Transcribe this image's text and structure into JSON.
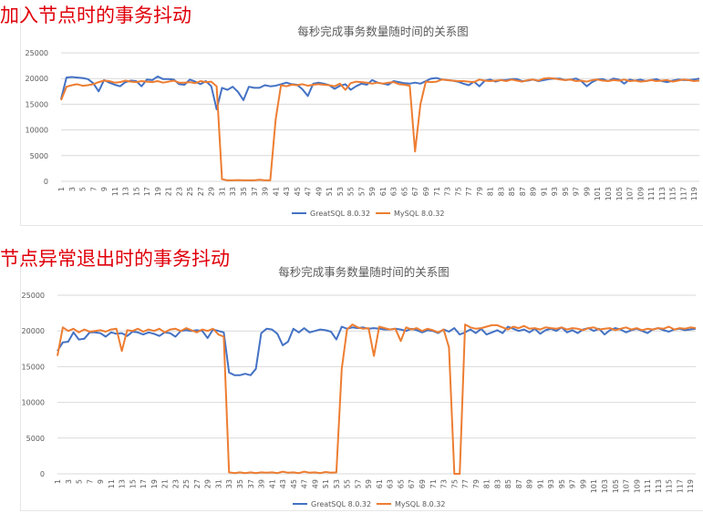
{
  "headings": [
    "加入节点时的事务抖动",
    "节点异常退出时的事务抖动"
  ],
  "colors": {
    "heading": "#e0000a",
    "greatsql": "#4472c4",
    "mysql": "#ed7d31",
    "grid": "#d9d9d9"
  },
  "chart_data": [
    {
      "type": "line",
      "title": "每秒完成事务数量随时间的关系图",
      "xlabel": "",
      "ylabel": "",
      "x_range": [
        1,
        120
      ],
      "x_tick_labels": [
        "1",
        "3",
        "5",
        "7",
        "9",
        "11",
        "13",
        "15",
        "17",
        "19",
        "21",
        "23",
        "25",
        "27",
        "29",
        "31",
        "33",
        "35",
        "37",
        "39",
        "41",
        "43",
        "45",
        "47",
        "49",
        "51",
        "53",
        "55",
        "57",
        "59",
        "61",
        "63",
        "65",
        "67",
        "69",
        "71",
        "73",
        "75",
        "77",
        "79",
        "81",
        "83",
        "85",
        "87",
        "89",
        "91",
        "93",
        "95",
        "97",
        "99",
        "101",
        "103",
        "105",
        "107",
        "109",
        "111",
        "113",
        "115",
        "117",
        "119"
      ],
      "y_tick_labels": [
        "0",
        "5000",
        "10000",
        "15000",
        "20000",
        "25000"
      ],
      "ylim": [
        0,
        25000
      ],
      "grid": true,
      "legend_position": "bottom",
      "series": [
        {
          "name": "GreatSQL 8.0.32",
          "color": "#4472c4",
          "values": [
            16000,
            20200,
            20300,
            20200,
            20100,
            19900,
            19100,
            17500,
            19700,
            19200,
            18800,
            18500,
            19300,
            19600,
            19500,
            18500,
            19800,
            19700,
            20400,
            19900,
            19900,
            19800,
            18900,
            18800,
            19800,
            19400,
            18900,
            19500,
            18500,
            14000,
            18200,
            17800,
            18400,
            17400,
            15800,
            18400,
            18200,
            18200,
            18700,
            18500,
            18600,
            18900,
            19200,
            18900,
            18800,
            17900,
            16600,
            19000,
            19200,
            19000,
            18700,
            18000,
            18600,
            18900,
            17800,
            18500,
            19000,
            18800,
            19700,
            19200,
            19000,
            18800,
            19500,
            19300,
            19100,
            19000,
            19200,
            19000,
            19500,
            20000,
            20100,
            19800,
            19700,
            19600,
            19400,
            19000,
            18700,
            19400,
            18500,
            19600,
            19800,
            19400,
            19700,
            19700,
            19900,
            19900,
            19500,
            19600,
            19800,
            19500,
            19700,
            19900,
            20000,
            20000,
            19700,
            19800,
            20000,
            19500,
            18500,
            19300,
            19800,
            19900,
            19500,
            20000,
            19800,
            19000,
            19800,
            19600,
            19800,
            19500,
            19700,
            19900,
            19500,
            19300,
            19600,
            19800,
            19700,
            19700,
            19800,
            20000
          ]
        },
        {
          "name": "MySQL 8.0.32",
          "color": "#ed7d31",
          "values": [
            15800,
            18400,
            18700,
            18900,
            18600,
            18700,
            18900,
            19300,
            19600,
            19500,
            19200,
            19300,
            19600,
            19400,
            19300,
            19500,
            19400,
            19300,
            19500,
            19200,
            19400,
            19600,
            19200,
            19200,
            19300,
            19100,
            19500,
            19300,
            19400,
            18500,
            400,
            200,
            200,
            250,
            200,
            200,
            200,
            300,
            200,
            200,
            12000,
            18700,
            18500,
            18800,
            18700,
            18900,
            18600,
            18800,
            18900,
            18800,
            18700,
            18500,
            19000,
            17800,
            19100,
            19400,
            19300,
            19200,
            19000,
            19200,
            19000,
            19200,
            19300,
            18900,
            18800,
            18600,
            5800,
            15000,
            19400,
            19300,
            19400,
            19800,
            19700,
            19600,
            19500,
            19500,
            19400,
            19300,
            19800,
            19600,
            19500,
            19600,
            19700,
            19500,
            19800,
            19600,
            19400,
            19700,
            19800,
            19600,
            20000,
            20100,
            20000,
            19800,
            19700,
            19800,
            19500,
            19600,
            19400,
            19700,
            19800,
            19600,
            19500,
            19700,
            19600,
            19800,
            19500,
            19600,
            19400,
            19500,
            19700,
            19500,
            19600,
            19700,
            19400,
            19600,
            19800,
            19700,
            19500,
            19600
          ]
        }
      ]
    },
    {
      "type": "line",
      "title": "每秒完成事务数量随时间的关系图",
      "xlabel": "",
      "ylabel": "",
      "x_range": [
        1,
        120
      ],
      "x_tick_labels": [
        "1",
        "3",
        "5",
        "7",
        "9",
        "11",
        "13",
        "15",
        "17",
        "19",
        "21",
        "23",
        "25",
        "27",
        "29",
        "31",
        "33",
        "35",
        "37",
        "39",
        "41",
        "43",
        "45",
        "47",
        "49",
        "51",
        "53",
        "55",
        "57",
        "59",
        "61",
        "63",
        "65",
        "67",
        "69",
        "71",
        "73",
        "75",
        "77",
        "79",
        "81",
        "83",
        "85",
        "87",
        "89",
        "91",
        "93",
        "95",
        "97",
        "99",
        "101",
        "103",
        "105",
        "107",
        "109",
        "111",
        "113",
        "115",
        "117",
        "119"
      ],
      "y_tick_labels": [
        "0",
        "5000",
        "10000",
        "15000",
        "20000",
        "25000"
      ],
      "ylim": [
        0,
        25000
      ],
      "grid": true,
      "legend_position": "bottom",
      "series": [
        {
          "name": "GreatSQL 8.0.32",
          "color": "#4472c4",
          "values": [
            17200,
            18400,
            18500,
            19800,
            18800,
            18900,
            19800,
            19800,
            19700,
            19200,
            19800,
            19600,
            19700,
            19300,
            19900,
            19800,
            19500,
            19800,
            19600,
            19300,
            19800,
            19700,
            19200,
            20000,
            20100,
            20000,
            20100,
            20000,
            19000,
            20200,
            20000,
            19800,
            14200,
            13800,
            13800,
            14000,
            13800,
            14700,
            19700,
            20300,
            20200,
            19600,
            18000,
            18500,
            20300,
            19800,
            20400,
            19800,
            20000,
            20200,
            20100,
            19900,
            18800,
            20600,
            20300,
            20500,
            20400,
            20500,
            20300,
            20400,
            20300,
            20200,
            20200,
            20300,
            20200,
            20000,
            20300,
            20100,
            19800,
            20100,
            20000,
            19700,
            20200,
            19900,
            20400,
            19500,
            19800,
            20200,
            19700,
            20300,
            19500,
            19800,
            20100,
            19700,
            20600,
            20300,
            20000,
            20200,
            19800,
            20300,
            19600,
            20100,
            20300,
            20000,
            20500,
            19800,
            20100,
            19700,
            20200,
            20400,
            20000,
            20300,
            19500,
            20100,
            20400,
            20200,
            19800,
            20100,
            20300,
            20000,
            19700,
            20200,
            20400,
            20100,
            19900,
            20200,
            20300,
            20100,
            20200,
            20300
          ]
        },
        {
          "name": "MySQL 8.0.32",
          "color": "#ed7d31",
          "values": [
            16500,
            20500,
            20000,
            20300,
            19800,
            20200,
            19900,
            20000,
            20100,
            19900,
            20200,
            20300,
            17200,
            20100,
            20000,
            20300,
            19900,
            20200,
            20000,
            20300,
            19800,
            20200,
            20300,
            20000,
            20400,
            20100,
            19800,
            20200,
            20000,
            20300,
            19500,
            19200,
            200,
            100,
            200,
            100,
            200,
            100,
            200,
            150,
            200,
            100,
            300,
            150,
            200,
            100,
            300,
            150,
            200,
            100,
            250,
            150,
            200,
            14700,
            20200,
            20900,
            20500,
            20300,
            20400,
            16500,
            20600,
            20400,
            20200,
            20300,
            18600,
            20500,
            20200,
            20400,
            20000,
            20300,
            20100,
            19800,
            20200,
            17700,
            0,
            0,
            20900,
            20500,
            20300,
            20400,
            20600,
            20800,
            20800,
            20500,
            20200,
            20600,
            20400,
            20700,
            20300,
            20400,
            20200,
            20500,
            20400,
            20300,
            20500,
            20200,
            20400,
            20300,
            20100,
            20400,
            20500,
            20200,
            20300,
            20400,
            20100,
            20300,
            20500,
            20200,
            20400,
            20100,
            20300,
            20200,
            20400,
            20300,
            20600,
            20200,
            20400,
            20300,
            20500,
            20400
          ]
        }
      ]
    }
  ]
}
